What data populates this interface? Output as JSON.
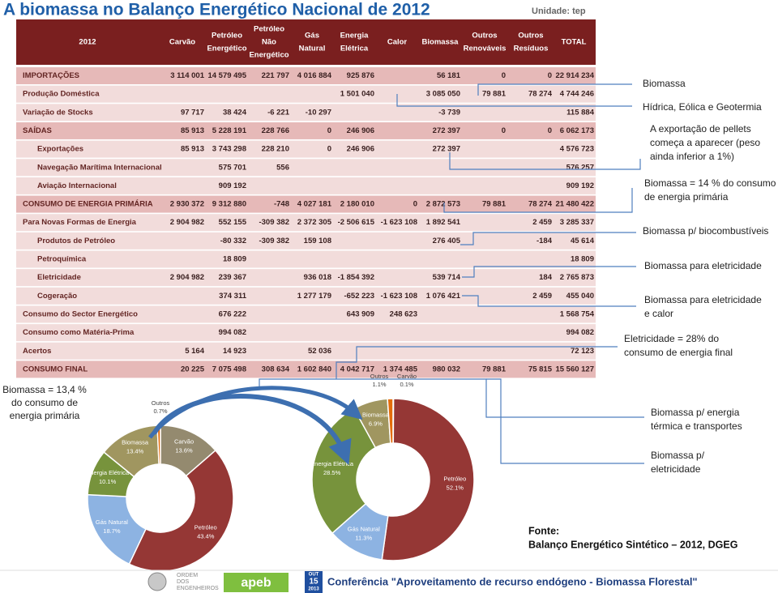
{
  "header": {
    "title": "A biomassa no Balanço Energético Nacional de 2012",
    "unit": "Unidade: tep"
  },
  "table": {
    "columns": [
      [
        "2012"
      ],
      [
        "Carvão"
      ],
      [
        "Petróleo",
        "Energético"
      ],
      [
        "Petróleo",
        "Não",
        "Energético"
      ],
      [
        "Gás",
        "Natural"
      ],
      [
        "Energia",
        "Elétrica"
      ],
      [
        "Calor"
      ],
      [
        "Biomassa"
      ],
      [
        "Outros",
        "Renováveis"
      ],
      [
        "Outros",
        "Resíduos"
      ],
      [
        "TOTAL"
      ]
    ],
    "rows": [
      {
        "label": "IMPORTAÇÕES",
        "cells": [
          "3 114 001",
          "14 579 495",
          "221 797",
          "4 016 884",
          "925 876",
          null,
          "56 181",
          "0",
          "0",
          "22 914 234"
        ]
      },
      {
        "label": "Produção Doméstica",
        "cells": [
          null,
          null,
          null,
          null,
          "1 501 040",
          null,
          "3 085 050",
          "79 881",
          "78 274",
          "4 744 246"
        ]
      },
      {
        "label": "Variação de Stocks",
        "cells": [
          "97 717",
          "38 424",
          "-6 221",
          "-10 297",
          null,
          null,
          "-3 739",
          null,
          null,
          "115 884"
        ]
      },
      {
        "label": "SAÍDAS",
        "cells": [
          "85 913",
          "5 228 191",
          "228 766",
          "0",
          "246 906",
          null,
          "272 397",
          "0",
          "0",
          "6 062 173"
        ]
      },
      {
        "label": "Exportações",
        "cells": [
          "85 913",
          "3 743 298",
          "228 210",
          "0",
          "246 906",
          null,
          "272 397",
          null,
          null,
          "4 576 723"
        ]
      },
      {
        "label": "Navegação Marítima Internacional",
        "cells": [
          null,
          "575 701",
          "556",
          null,
          null,
          null,
          null,
          null,
          null,
          "576 257"
        ]
      },
      {
        "label": "Aviação Internacional",
        "cells": [
          null,
          "909 192",
          null,
          null,
          null,
          null,
          null,
          null,
          null,
          "909 192"
        ]
      },
      {
        "label": "CONSUMO DE ENERGIA PRIMÁRIA",
        "cells": [
          "2 930 372",
          "9 312 880",
          "-748",
          "4 027 181",
          "2 180 010",
          "0",
          "2 872 573",
          "79 881",
          "78 274",
          "21 480 422"
        ]
      },
      {
        "label": "Para Novas Formas de Energia",
        "cells": [
          "2 904 982",
          "552 155",
          "-309 382",
          "2 372 305",
          "-2 506 615",
          "-1 623 108",
          "1 892 541",
          null,
          "2 459",
          "3 285 337"
        ]
      },
      {
        "label": "Produtos de Petróleo",
        "cells": [
          null,
          "-80 332",
          "-309 382",
          "159 108",
          null,
          null,
          "276 405",
          null,
          "-184",
          "45 614"
        ]
      },
      {
        "label": "Petroquímica",
        "cells": [
          null,
          "18 809",
          null,
          null,
          null,
          null,
          null,
          null,
          null,
          "18 809"
        ]
      },
      {
        "label": "Eletricidade",
        "cells": [
          "2 904 982",
          "239 367",
          null,
          "936 018",
          "-1 854 392",
          null,
          "539 714",
          null,
          "184",
          "2 765 873"
        ]
      },
      {
        "label": "Cogeração",
        "cells": [
          null,
          "374 311",
          null,
          "1 277 179",
          "-652 223",
          "-1 623 108",
          "1 076 421",
          null,
          "2 459",
          "455 040"
        ]
      },
      {
        "label": "Consumo do Sector Energético",
        "cells": [
          null,
          "676 222",
          null,
          null,
          "643 909",
          "248 623",
          null,
          null,
          null,
          "1 568 754"
        ]
      },
      {
        "label": "Consumo como Matéria-Prima",
        "cells": [
          null,
          "994 082",
          null,
          null,
          null,
          null,
          null,
          null,
          null,
          "994 082"
        ]
      },
      {
        "label": "Acertos",
        "cells": [
          "5 164",
          "14 923",
          null,
          "52 036",
          null,
          null,
          null,
          null,
          null,
          "72 123"
        ]
      },
      {
        "label": "CONSUMO FINAL",
        "cells": [
          "20 225",
          "7 075 498",
          "308 634",
          "1 602 840",
          "4 042 717",
          "1 374 485",
          "980 032",
          "79 881",
          "75 815",
          "15 560 127"
        ]
      }
    ]
  },
  "annotations": [
    [
      "Biomassa"
    ],
    [
      "Hídrica, Eólica e Geotermia"
    ],
    [
      "A exportação de  pellets",
      "começa a aparecer (peso",
      "ainda inferior a 1%)"
    ],
    [
      "Biomassa = 14 % do consumo",
      "de energia primária"
    ],
    [
      "Biomassa p/ biocombustíveis"
    ],
    [
      "Biomassa para eletricidade"
    ],
    [
      "Biomassa para eletricidade",
      "e calor"
    ],
    [
      "Eletricidade = 28% do",
      "consumo de energia final"
    ],
    [
      "Biomassa p/  energia",
      "térmica e transportes"
    ],
    [
      "Biomassa p/",
      "eletricidade"
    ]
  ],
  "side_note": [
    "Biomassa = 13,4 %",
    "do consumo de",
    "energia primária"
  ],
  "chart_data": [
    {
      "type": "pie",
      "categories": [
        "Carvão",
        "Petróleo",
        "Gás Natural",
        "Energia Elétrica",
        "Biomassa",
        "Outros"
      ],
      "values": [
        13.6,
        43.4,
        18.7,
        10.1,
        13.4,
        0.7
      ],
      "value_labels": [
        "13.6%",
        "43.4%",
        "18.7%",
        "10.1%",
        "13.4%",
        "0.7%"
      ],
      "colors": [
        "#948a6f",
        "#953735",
        "#8db3e2",
        "#77933c",
        "#a09660",
        "#e46c0a"
      ]
    },
    {
      "type": "pie",
      "categories": [
        "Carvão",
        "Petróleo",
        "Gás Natural",
        "Energia Elétrica",
        "Biomassa",
        "Outros"
      ],
      "values": [
        0.1,
        52.1,
        11.3,
        28.5,
        6.9,
        1.1
      ],
      "value_labels": [
        "0.1%",
        "52.1%",
        "11.3%",
        "28.5%",
        "6.9%",
        "1.1%"
      ],
      "colors": [
        "#948a6f",
        "#953735",
        "#8db3e2",
        "#77933c",
        "#a09660",
        "#e46c0a"
      ]
    }
  ],
  "source": [
    "Fonte:",
    "Balanço Energético Sintético – 2012, DGEG"
  ],
  "footer": {
    "logo": [
      "ORDEM",
      "DOS",
      "ENGENHEIROS"
    ],
    "apeb": "apeb",
    "date": [
      "OUT",
      "15",
      "2013"
    ],
    "conference": "Conferência \"Aproveitamento de recurso endógeno - Biomassa Florestal\""
  }
}
